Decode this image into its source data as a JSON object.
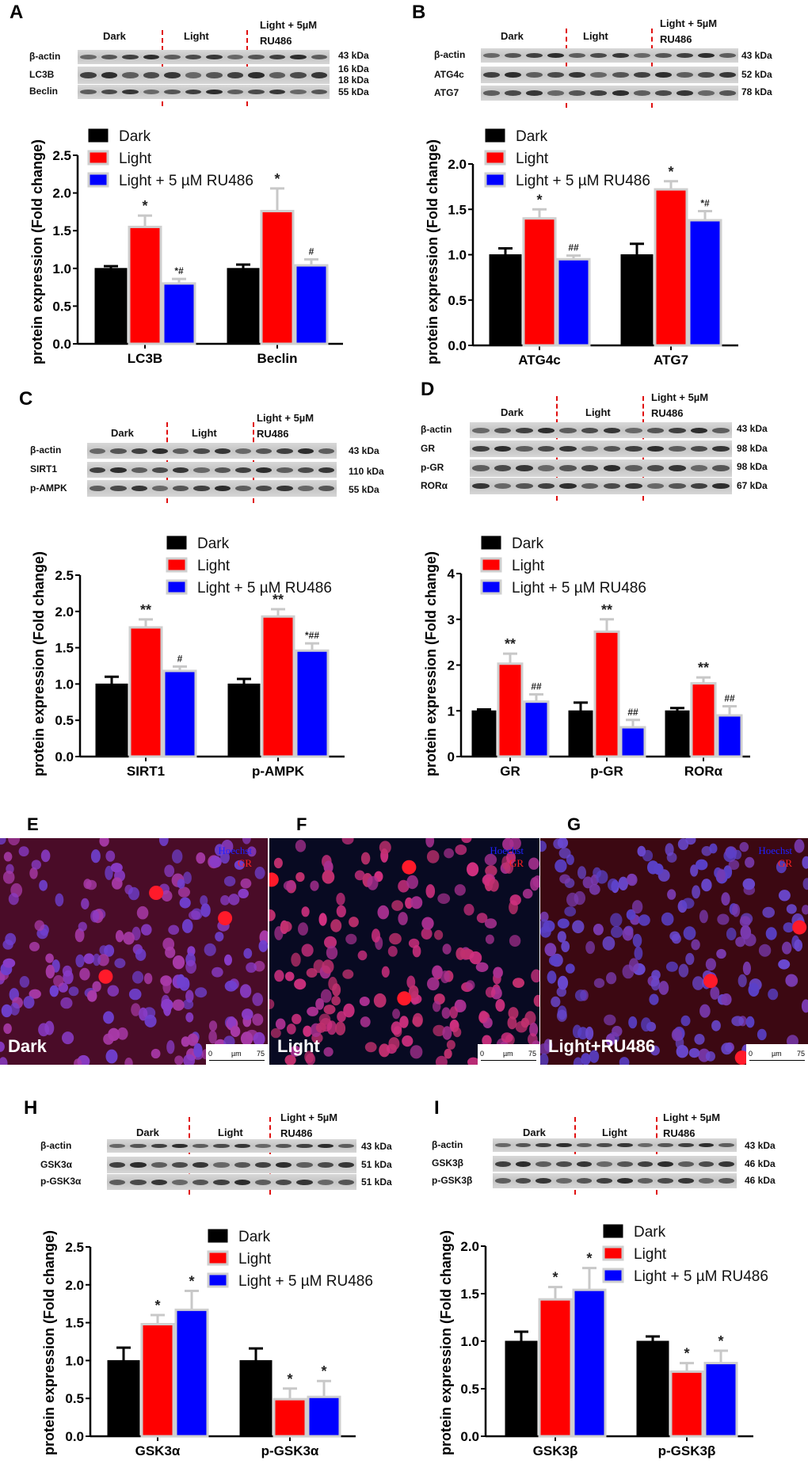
{
  "panels": [
    {
      "id": "A",
      "label": "A",
      "blot": {
        "groups": [
          "Dark",
          "Light",
          "Light + 5µM RU486"
        ],
        "rows": [
          {
            "name": "β-actin",
            "kda": [
              "43 kDa"
            ]
          },
          {
            "name": "LC3B",
            "kda": [
              "16 kDa",
              "18 kDa"
            ]
          },
          {
            "name": "Beclin",
            "kda": [
              "55 kDa"
            ]
          }
        ]
      }
    },
    {
      "id": "B",
      "label": "B",
      "blot": {
        "groups": [
          "Dark",
          "Light",
          "Light + 5µM RU486"
        ],
        "rows": [
          {
            "name": "β-actin",
            "kda": [
              "43 kDa"
            ]
          },
          {
            "name": "ATG4c",
            "kda": [
              "52 kDa"
            ]
          },
          {
            "name": "ATG7",
            "kda": [
              "78 kDa"
            ]
          }
        ]
      }
    },
    {
      "id": "C",
      "label": "C",
      "blot": {
        "groups": [
          "Dark",
          "Light",
          "Light + 5µM RU486"
        ],
        "rows": [
          {
            "name": "β-actin",
            "kda": [
              "43 kDa"
            ]
          },
          {
            "name": "SIRT1",
            "kda": [
              "110 kDa"
            ]
          },
          {
            "name": "p-AMPK",
            "kda": [
              "55 kDa"
            ]
          }
        ]
      }
    },
    {
      "id": "D",
      "label": "D",
      "blot": {
        "groups": [
          "Dark",
          "Light",
          "Light + 5µM RU486"
        ],
        "rows": [
          {
            "name": "β-actin",
            "kda": [
              "43 kDa"
            ]
          },
          {
            "name": "GR",
            "kda": [
              "98 kDa"
            ]
          },
          {
            "name": "p-GR",
            "kda": [
              "98 kDa"
            ]
          },
          {
            "name": "RORα",
            "kda": [
              "67 kDa"
            ]
          }
        ]
      }
    },
    {
      "id": "H",
      "label": "H",
      "blot": {
        "groups": [
          "Dark",
          "Light",
          "Light + 5µM RU486"
        ],
        "rows": [
          {
            "name": "β-actin",
            "kda": [
              "43 kDa"
            ]
          },
          {
            "name": "GSK3α",
            "kda": [
              "51 kDa"
            ]
          },
          {
            "name": "p-GSK3α",
            "kda": [
              "51 kDa"
            ]
          }
        ]
      }
    },
    {
      "id": "I",
      "label": "I",
      "blot": {
        "groups": [
          "Dark",
          "Light",
          "Light + 5µM RU486"
        ],
        "rows": [
          {
            "name": "β-actin",
            "kda": [
              "43 kDa"
            ]
          },
          {
            "name": "GSK3β",
            "kda": [
              "46 kDa"
            ]
          },
          {
            "name": "p-GSK3β",
            "kda": [
              "46 kDa"
            ]
          }
        ]
      }
    }
  ],
  "micrographs": [
    {
      "id": "E",
      "label": "E",
      "condition": "Dark",
      "channels": [
        {
          "name": "Hoechst",
          "color": "#2020ff"
        },
        {
          "name": "GR",
          "color": "#ff2020"
        }
      ],
      "scale": {
        "start": "0",
        "unit": "µm",
        "end": "75"
      }
    },
    {
      "id": "F",
      "label": "F",
      "condition": "Light",
      "channels": [
        {
          "name": "Hoechst",
          "color": "#2020ff"
        },
        {
          "name": "GR",
          "color": "#ff2020"
        }
      ],
      "scale": {
        "start": "0",
        "unit": "µm",
        "end": "75"
      }
    },
    {
      "id": "G",
      "label": "G",
      "condition": "Light+RU486",
      "channels": [
        {
          "name": "Hoechst",
          "color": "#2020ff"
        },
        {
          "name": "GR",
          "color": "#ff2020"
        }
      ],
      "scale": {
        "start": "0",
        "unit": "µm",
        "end": "75"
      }
    }
  ],
  "colors": {
    "Dark": "#000000",
    "Light": "#ff0000",
    "Light + 5 µM RU486": "#0000ff",
    "error_bar": "#c8c8c8",
    "divider": "#e01010"
  },
  "chart_data": [
    {
      "panel": "A",
      "type": "bar",
      "ylabel": "protein expression (Fold change)",
      "ylim": [
        0,
        2.5
      ],
      "yticks": [
        "0.0",
        "0.5",
        "1.0",
        "1.5",
        "2.0",
        "2.5"
      ],
      "legend": "top-left",
      "categories": [
        "LC3B",
        "Beclin"
      ],
      "series": [
        {
          "name": "Dark",
          "values": [
            1.0,
            1.0
          ],
          "errors": [
            0.03,
            0.05
          ],
          "annotations": [
            "",
            ""
          ]
        },
        {
          "name": "Light",
          "values": [
            1.55,
            1.76
          ],
          "errors": [
            0.15,
            0.3
          ],
          "annotations": [
            "*",
            "*"
          ]
        },
        {
          "name": "Light + 5 µM RU486",
          "values": [
            0.8,
            1.04
          ],
          "errors": [
            0.06,
            0.08
          ],
          "annotations": [
            "*#",
            "#"
          ]
        }
      ]
    },
    {
      "panel": "B",
      "type": "bar",
      "ylabel": "protein expression (Fold change)",
      "ylim": [
        0,
        2.0
      ],
      "yticks": [
        "0.0",
        "0.5",
        "1.0",
        "1.5",
        "2.0"
      ],
      "legend": "top-left",
      "categories": [
        "ATG4c",
        "ATG7"
      ],
      "series": [
        {
          "name": "Dark",
          "values": [
            1.0,
            1.0
          ],
          "errors": [
            0.07,
            0.12
          ],
          "annotations": [
            "",
            ""
          ]
        },
        {
          "name": "Light",
          "values": [
            1.4,
            1.72
          ],
          "errors": [
            0.1,
            0.09
          ],
          "annotations": [
            "*",
            "*"
          ]
        },
        {
          "name": "Light + 5 µM RU486",
          "values": [
            0.95,
            1.38
          ],
          "errors": [
            0.04,
            0.1
          ],
          "annotations": [
            "##",
            "*#"
          ]
        }
      ]
    },
    {
      "panel": "C",
      "type": "bar",
      "ylabel": "protein expression (Fold change)",
      "ylim": [
        0,
        2.5
      ],
      "yticks": [
        "0.0",
        "0.5",
        "1.0",
        "1.5",
        "2.0",
        "2.5"
      ],
      "legend": "top-left",
      "categories": [
        "SIRT1",
        "p-AMPK"
      ],
      "series": [
        {
          "name": "Dark",
          "values": [
            1.0,
            1.0
          ],
          "errors": [
            0.1,
            0.07
          ],
          "annotations": [
            "",
            ""
          ]
        },
        {
          "name": "Light",
          "values": [
            1.78,
            1.93
          ],
          "errors": [
            0.11,
            0.1
          ],
          "annotations": [
            "**",
            "**"
          ]
        },
        {
          "name": "Light + 5 µM RU486",
          "values": [
            1.18,
            1.46
          ],
          "errors": [
            0.06,
            0.1
          ],
          "annotations": [
            "#",
            "*##"
          ]
        }
      ]
    },
    {
      "panel": "D",
      "type": "bar",
      "ylabel": "protein expression (Fold change)",
      "ylim": [
        0,
        4
      ],
      "yticks": [
        "0",
        "1",
        "2",
        "3",
        "4"
      ],
      "legend": "top-left",
      "categories": [
        "GR",
        "p-GR",
        "RORα"
      ],
      "series": [
        {
          "name": "Dark",
          "values": [
            1.0,
            1.0,
            1.0
          ],
          "errors": [
            0.03,
            0.18,
            0.06
          ],
          "annotations": [
            "",
            "",
            ""
          ]
        },
        {
          "name": "Light",
          "values": [
            2.03,
            2.73,
            1.6
          ],
          "errors": [
            0.22,
            0.27,
            0.13
          ],
          "annotations": [
            "**",
            "**",
            "**"
          ]
        },
        {
          "name": "Light + 5 µM RU486",
          "values": [
            1.2,
            0.64,
            0.9
          ],
          "errors": [
            0.16,
            0.16,
            0.2
          ],
          "annotations": [
            "##",
            "##",
            "##"
          ]
        }
      ]
    },
    {
      "panel": "H",
      "type": "bar",
      "ylabel": "protein expression (Fold change)",
      "ylim": [
        0,
        2.5
      ],
      "yticks": [
        "0.0",
        "0.5",
        "1.0",
        "1.5",
        "2.0",
        "2.5"
      ],
      "legend": "top-right",
      "categories": [
        "GSK3α",
        "p-GSK3α"
      ],
      "series": [
        {
          "name": "Dark",
          "values": [
            1.0,
            1.0
          ],
          "errors": [
            0.17,
            0.16
          ],
          "annotations": [
            "",
            ""
          ]
        },
        {
          "name": "Light",
          "values": [
            1.48,
            0.49
          ],
          "errors": [
            0.12,
            0.14
          ],
          "annotations": [
            "*",
            "*"
          ]
        },
        {
          "name": "Light + 5 µM RU486",
          "values": [
            1.67,
            0.52
          ],
          "errors": [
            0.25,
            0.21
          ],
          "annotations": [
            "*",
            "*"
          ]
        }
      ]
    },
    {
      "panel": "I",
      "type": "bar",
      "ylabel": "protein expression (Fold change)",
      "ylim": [
        0,
        2.0
      ],
      "yticks": [
        "0.0",
        "0.5",
        "1.0",
        "1.5",
        "2.0"
      ],
      "legend": "top-right",
      "categories": [
        "GSK3β",
        "p-GSK3β"
      ],
      "series": [
        {
          "name": "Dark",
          "values": [
            1.0,
            1.0
          ],
          "errors": [
            0.1,
            0.05
          ],
          "annotations": [
            "",
            ""
          ]
        },
        {
          "name": "Light",
          "values": [
            1.44,
            0.68
          ],
          "errors": [
            0.13,
            0.09
          ],
          "annotations": [
            "*",
            "*"
          ]
        },
        {
          "name": "Light + 5 µM RU486",
          "values": [
            1.54,
            0.77
          ],
          "errors": [
            0.23,
            0.13
          ],
          "annotations": [
            "*",
            "*"
          ]
        }
      ]
    }
  ]
}
